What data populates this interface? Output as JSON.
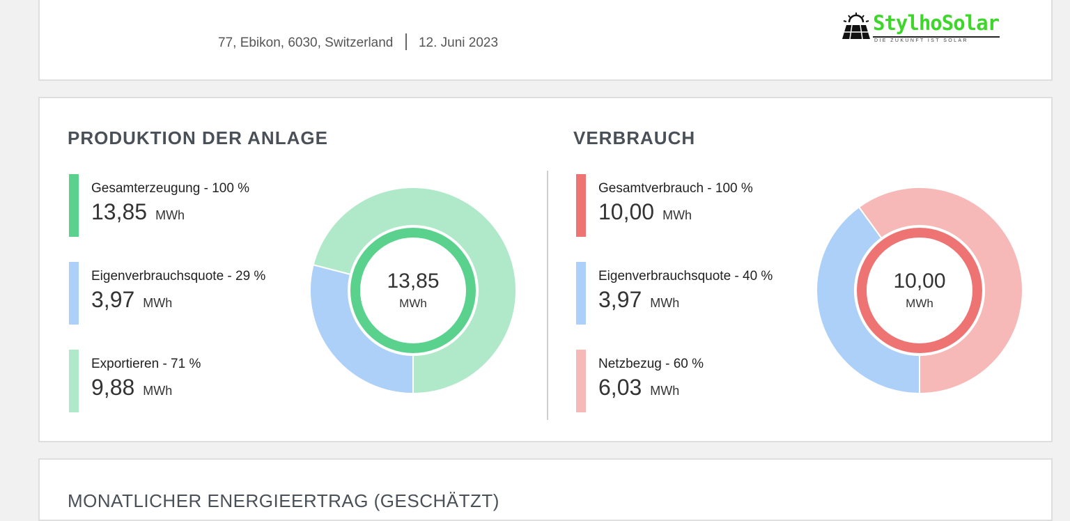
{
  "header": {
    "address": "77, Ebikon, 6030, Switzerland",
    "date": "12. Juni 2023",
    "logo_name": "StylhoSolar",
    "logo_tagline": "DIE ZUKUNFT IST SOLAR"
  },
  "production": {
    "title": "PRODUKTION DER ANLAGE",
    "items": [
      {
        "label": "Gesamterzeugung - 100 %",
        "value": "13,85",
        "unit": "MWh",
        "color": "#5ad28e"
      },
      {
        "label": "Eigenverbrauchsquote - 29 %",
        "value": "3,97",
        "unit": "MWh",
        "color": "#add0f8"
      },
      {
        "label": "Exportieren - 71 %",
        "value": "9,88",
        "unit": "MWh",
        "color": "#b0e9c9"
      }
    ],
    "center_value": "13,85",
    "center_unit": "MWh"
  },
  "consumption": {
    "title": "VERBRAUCH",
    "items": [
      {
        "label": "Gesamtverbrauch - 100 %",
        "value": "10,00",
        "unit": "MWh",
        "color": "#ee7474"
      },
      {
        "label": "Eigenverbrauchsquote - 40 %",
        "value": "3,97",
        "unit": "MWh",
        "color": "#add0f8"
      },
      {
        "label": "Netzbezug - 60 %",
        "value": "6,03",
        "unit": "MWh",
        "color": "#f7b8b8"
      }
    ],
    "center_value": "10,00",
    "center_unit": "MWh"
  },
  "monthly": {
    "title": "MONATLICHER ENERGIEERTRAG (GESCHÄTZT)"
  },
  "chart_data": [
    {
      "type": "pie",
      "title": "PRODUKTION DER ANLAGE",
      "total": {
        "label": "Gesamterzeugung",
        "value": 13.85,
        "unit": "MWh"
      },
      "slices": [
        {
          "label": "Eigenverbrauchsquote",
          "percent": 29,
          "value": 3.97,
          "color": "#add0f8"
        },
        {
          "label": "Exportieren",
          "percent": 71,
          "value": 9.88,
          "color": "#b0e9c9"
        }
      ],
      "center_ring_color": "#5ad28e"
    },
    {
      "type": "pie",
      "title": "VERBRAUCH",
      "total": {
        "label": "Gesamtverbrauch",
        "value": 10.0,
        "unit": "MWh"
      },
      "slices": [
        {
          "label": "Eigenverbrauchsquote",
          "percent": 40,
          "value": 3.97,
          "color": "#add0f8"
        },
        {
          "label": "Netzbezug",
          "percent": 60,
          "value": 6.03,
          "color": "#f7b8b8"
        }
      ],
      "center_ring_color": "#ee7474"
    }
  ]
}
